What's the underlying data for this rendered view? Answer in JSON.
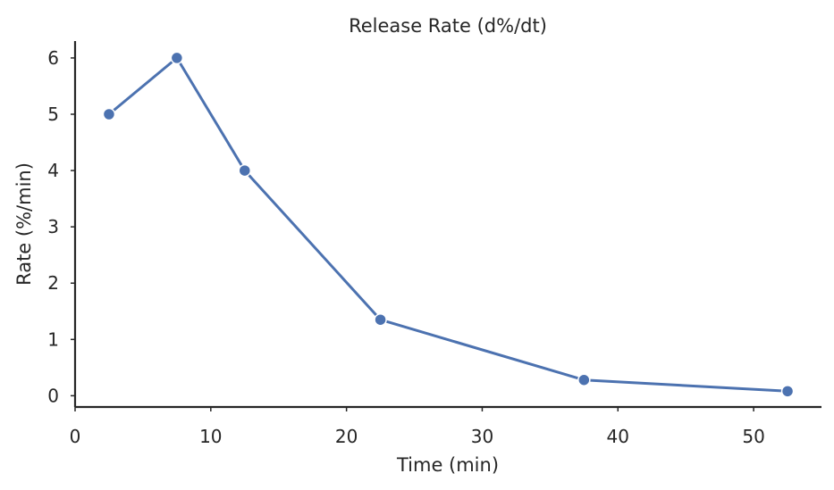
{
  "chart_data": {
    "type": "line",
    "title": "Release Rate (d%/dt)",
    "xlabel": "Time (min)",
    "ylabel": "Rate (%/min)",
    "xlim": [
      0,
      55
    ],
    "ylim": [
      -0.2,
      6.3
    ],
    "xticks": [
      0,
      10,
      20,
      30,
      40,
      50
    ],
    "yticks": [
      0,
      1,
      2,
      3,
      4,
      5,
      6
    ],
    "grid": false,
    "line_color": "#4c72b0",
    "series": [
      {
        "x": [
          2.5,
          7.5,
          12.5,
          22.5,
          37.5,
          52.5
        ],
        "y": [
          5.0,
          6.0,
          4.0,
          1.35,
          0.28,
          0.08
        ]
      }
    ]
  }
}
